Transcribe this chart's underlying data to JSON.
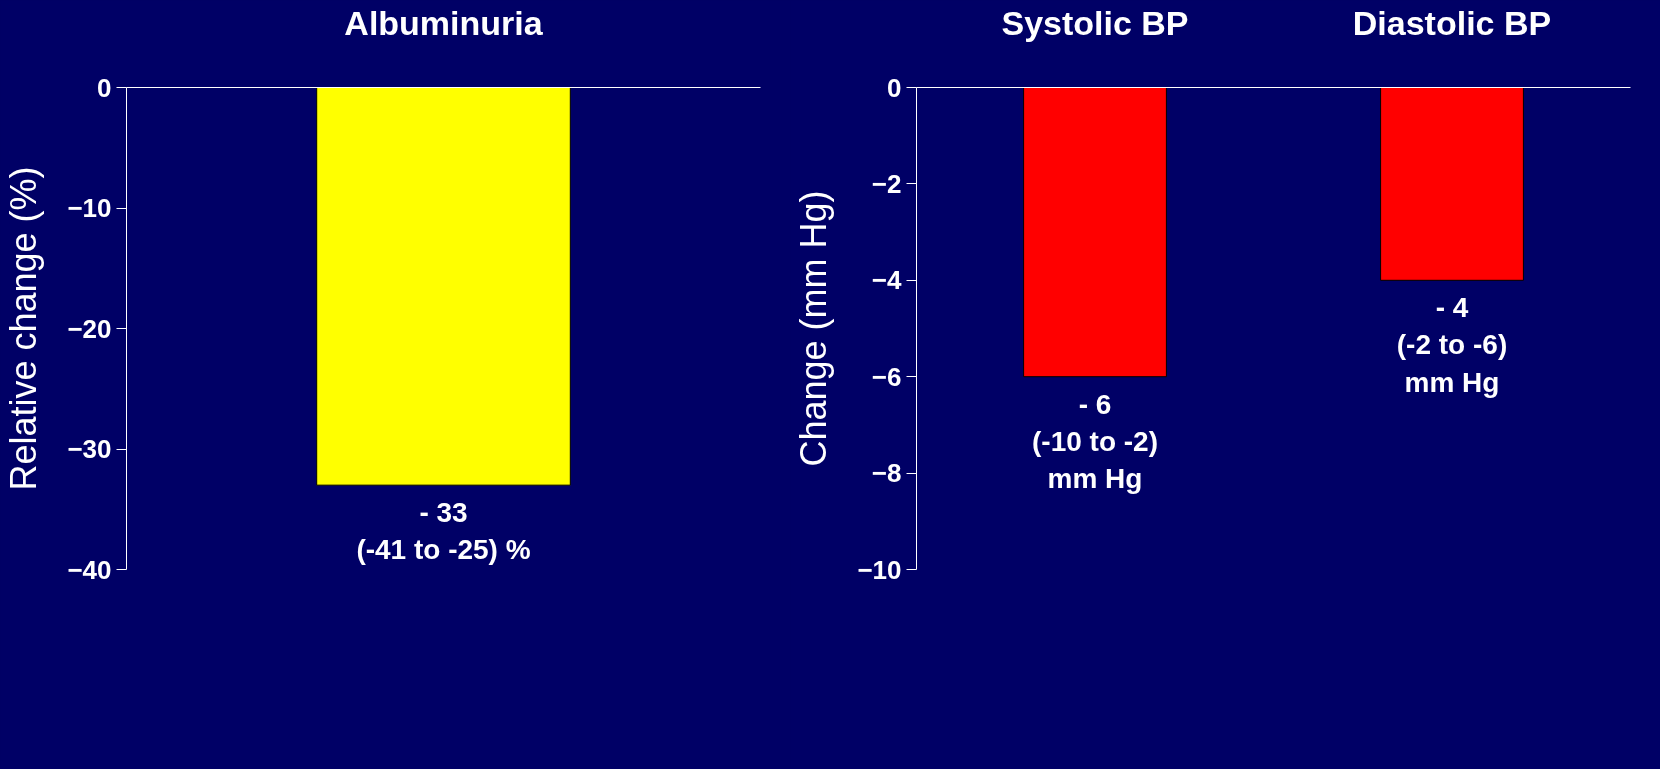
{
  "chart_data": [
    {
      "type": "bar",
      "categories": [
        "Albuminuria"
      ],
      "values": [
        -33
      ],
      "colors": [
        "#ffff00"
      ],
      "ylabel": "Relative change (%)",
      "ylim": [
        -40,
        0
      ],
      "yticks": [
        0,
        -10,
        -20,
        -30,
        -40
      ],
      "value_labels": [
        "- 33\n(-41 to -25) %"
      ]
    },
    {
      "type": "bar",
      "categories": [
        "Systolic BP",
        "Diastolic BP"
      ],
      "values": [
        -6,
        -4
      ],
      "colors": [
        "#ff0000",
        "#ff0000"
      ],
      "ylabel": "Change (mm Hg)",
      "ylim": [
        -10,
        0
      ],
      "yticks": [
        0,
        -2,
        -4,
        -6,
        -8,
        -10
      ],
      "value_labels": [
        "- 6\n(-10 to -2)\nmm Hg",
        "- 4\n(-2 to -6)\nmm Hg"
      ]
    }
  ]
}
